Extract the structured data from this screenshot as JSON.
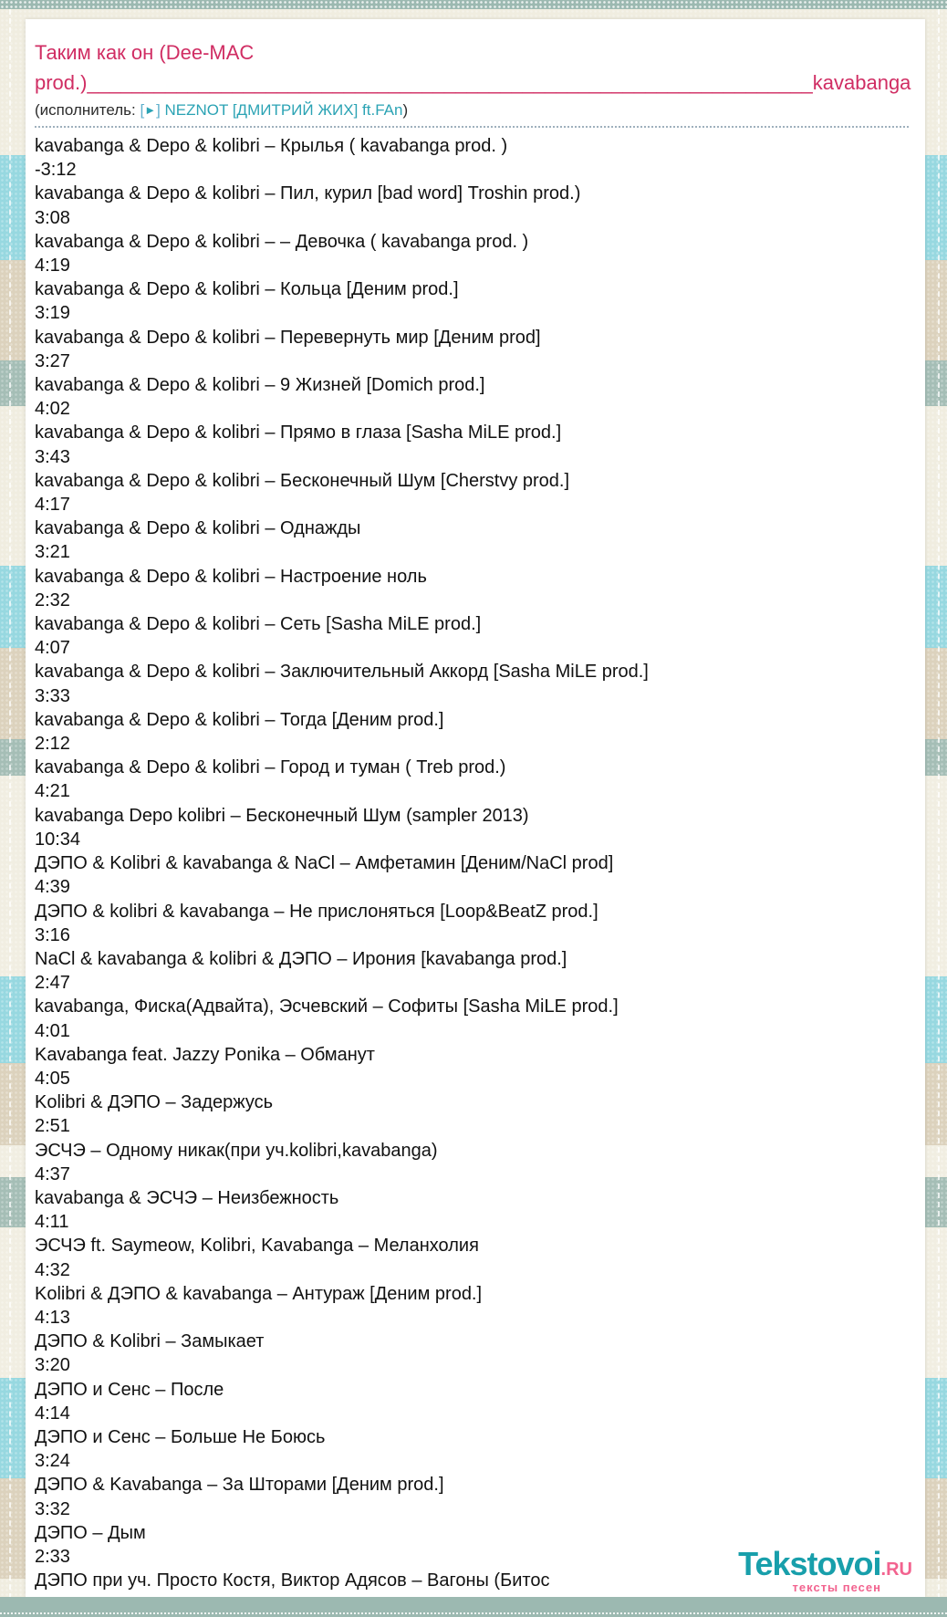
{
  "colors": {
    "accent_pink": "#d02d63",
    "link_teal": "#2ba3b4",
    "logo_teal": "#189fab",
    "logo_pink": "#f2638f",
    "stripe_blue": "#97d8e0",
    "stripe_tan": "#dcd2bd",
    "stripe_teal": "#a5beb6",
    "stripe_cream": "#f0ede0"
  },
  "header": {
    "title": "Таким как он (Dee-MAC prod.)_________________________________________________________________kavabanga",
    "artist_prefix": "(исполнитель: ",
    "bracket_open": "[",
    "play_symbol": "►",
    "bracket_close": "] ",
    "artist_link": "NEZNOT [ДМИТРИЙ ЖИХ] ft.FAn",
    "artist_suffix": ")"
  },
  "tracks": [
    {
      "title": "kavabanga & Depo & kolibri – Крылья ( kavabanga prod. )",
      "duration": "-3:12"
    },
    {
      "title": "kavabanga & Depo & kolibri – Пил, курил  [bad word] Troshin prod.)",
      "duration": "3:08"
    },
    {
      "title": "kavabanga & Depo & kolibri – – Девочка ( kavabanga prod. )",
      "duration": "4:19"
    },
    {
      "title": "kavabanga & Depo & kolibri – Кольца [Деним prod.]",
      "duration": "3:19"
    },
    {
      "title": "kavabanga & Depo & kolibri – Перевернуть мир [Деним prod]",
      "duration": "3:27"
    },
    {
      "title": "kavabanga & Depo & kolibri – 9 Жизней [Domich prod.]",
      "duration": "4:02"
    },
    {
      "title": "kavabanga & Depo & kolibri – Прямо в глаза [Sasha MiLE prod.]",
      "duration": "3:43"
    },
    {
      "title": "kavabanga & Depo & kolibri – Бесконечный Шум [Cherstvy prod.]",
      "duration": "4:17"
    },
    {
      "title": "kavabanga & Depo & kolibri – Однажды",
      "duration": "3:21"
    },
    {
      "title": "kavabanga & Depo & kolibri – Настроение ноль",
      "duration": "2:32"
    },
    {
      "title": "kavabanga & Depo & kolibri – Сеть [Sasha MiLE prod.]",
      "duration": "4:07"
    },
    {
      "title": "kavabanga & Depo & kolibri – Заключительный Аккорд [Sasha MiLE prod.]",
      "duration": "3:33"
    },
    {
      "title": "kavabanga & Depo & kolibri – Тогда [Деним prod.]",
      "duration": "2:12"
    },
    {
      "title": "kavabanga & Depo & kolibri – Город и туман ( Treb prod.)",
      "duration": "4:21"
    },
    {
      "title": "kavabanga Depo kolibri – Бесконечный Шум (sampler 2013)",
      "duration": "10:34"
    },
    {
      "title": "ДЭПО & Kolibri & kavabanga & NaCl – Амфетамин [Деним/NaCl prod]",
      "duration": "4:39"
    },
    {
      "title": "ДЭПО & kolibri & kavabanga – Не прислоняться [Loop&BeatZ prod.]",
      "duration": "3:16"
    },
    {
      "title": "NaCl & kavabanga & kolibri & ДЭПО – Ирония [kavabanga prod.]",
      "duration": "2:47"
    },
    {
      "title": "kavabanga, Фиска(Адвайта), Эсчевский – Софиты [Sasha MiLE prod.]",
      "duration": "4:01"
    },
    {
      "title": "Kavabanga feat. Jazzy Ponika – Обманут",
      "duration": "4:05"
    },
    {
      "title": "Kolibri & ДЭПО – Задержусь",
      "duration": "2:51"
    },
    {
      "title": "ЭСЧЭ – Одному никак(при уч.kolibri,kavabanga)",
      "duration": "4:37"
    },
    {
      "title": "kavabanga & ЭСЧЭ – Неизбежность",
      "duration": "4:11"
    },
    {
      "title": "ЭСЧЭ ft. Saymeow, Kolibri, Kavabanga – Меланхолия",
      "duration": "4:32"
    },
    {
      "title": "Kolibri & ДЭПО & kavabanga – Антураж [Деним prod.]",
      "duration": "4:13"
    },
    {
      "title": "ДЭПО & Kolibri – Замыкает",
      "duration": "3:20"
    },
    {
      "title": "ДЭПО и Сенс – После",
      "duration": "4:14"
    },
    {
      "title": "ДЭПО и Сенс – Больше Не Боюсь",
      "duration": "3:24"
    },
    {
      "title": "ДЭПО & Kavabanga – За Шторами [Деним prod.]",
      "duration": "3:32"
    },
    {
      "title": "ДЭПО – Дым",
      "duration": "2:33"
    },
    {
      "title": "ДЭПО при уч. Просто Костя, Виктор Адясов – Вагоны (Битос",
      "duration": ""
    }
  ],
  "logo": {
    "name": "Tekstovoi",
    "tld": ".RU",
    "tagline": "тексты песен"
  }
}
